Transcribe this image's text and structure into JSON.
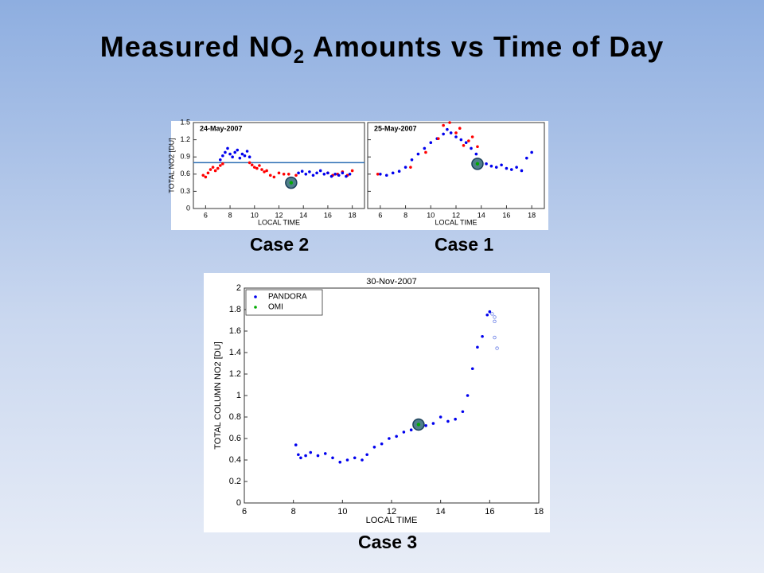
{
  "slide_title": {
    "main": "Measured NO",
    "sub": "2",
    "rest": " Amounts vs Time of Day"
  },
  "captions": [
    "Case 2",
    "Case 1",
    "Case 3"
  ],
  "chart_data": [
    {
      "type": "scatter",
      "title": "24-May-2007",
      "x_label": "LOCAL TIME",
      "y_label": "TOTAL NO2 [DU]",
      "xlim": [
        5,
        19
      ],
      "xticks": [
        6,
        8,
        10,
        12,
        14,
        16,
        18
      ],
      "ylim": [
        0,
        1.5
      ],
      "yticks": [
        0,
        0.3,
        0.6,
        0.9,
        1.2,
        1.5
      ],
      "reference_line": 0.8,
      "reference_color": "#2e6fb5",
      "series": [
        {
          "color": "#ff0000",
          "x": [
            5.8,
            6.0,
            6.2,
            6.4,
            6.6,
            6.8,
            7.0,
            7.2,
            7.4,
            9.6,
            9.8,
            10.0,
            10.2,
            10.4,
            10.6,
            10.8,
            11.0,
            11.3,
            11.6,
            12.0,
            12.4,
            12.8,
            13.4,
            16.0,
            16.4,
            16.8,
            17.2,
            17.6,
            18.0
          ],
          "values": [
            0.58,
            0.55,
            0.62,
            0.68,
            0.72,
            0.66,
            0.7,
            0.75,
            0.78,
            0.8,
            0.76,
            0.72,
            0.7,
            0.75,
            0.68,
            0.64,
            0.66,
            0.58,
            0.55,
            0.62,
            0.6,
            0.6,
            0.58,
            0.62,
            0.58,
            0.6,
            0.64,
            0.58,
            0.66
          ]
        },
        {
          "color": "#0000ee",
          "x": [
            7.2,
            7.4,
            7.6,
            7.8,
            8.0,
            8.2,
            8.4,
            8.6,
            8.8,
            9.0,
            9.2,
            9.4,
            9.6,
            13.6,
            13.9,
            14.2,
            14.5,
            14.8,
            15.1,
            15.4,
            15.7,
            16.0,
            16.3,
            16.6,
            16.9,
            17.2,
            17.5,
            17.8
          ],
          "values": [
            0.85,
            0.92,
            0.98,
            1.05,
            0.95,
            0.9,
            0.98,
            1.02,
            0.88,
            0.95,
            0.92,
            1.0,
            0.9,
            0.62,
            0.65,
            0.6,
            0.64,
            0.58,
            0.62,
            0.66,
            0.6,
            0.62,
            0.56,
            0.6,
            0.58,
            0.62,
            0.56,
            0.6
          ]
        },
        {
          "color": "#00aa00",
          "marker": "highlight",
          "x": [
            13.0
          ],
          "values": [
            0.45
          ]
        }
      ]
    },
    {
      "type": "scatter",
      "title": "25-May-2007",
      "x_label": "LOCAL TIME",
      "xlim": [
        5,
        19
      ],
      "xticks": [
        6,
        8,
        10,
        12,
        14,
        16,
        18
      ],
      "ylim": [
        0,
        1.5
      ],
      "yticks": [
        0,
        0.3,
        0.6,
        0.9,
        1.2,
        1.5
      ],
      "series": [
        {
          "color": "#0000ee",
          "x": [
            6.0,
            6.5,
            7.0,
            7.5,
            8.0,
            8.5,
            9.0,
            9.5,
            10.0,
            10.5,
            11.0,
            11.3,
            11.6,
            12.0,
            12.4,
            12.8,
            13.2,
            13.6,
            14.0,
            14.4,
            14.8,
            15.2,
            15.6,
            16.0,
            16.4,
            16.8,
            17.2,
            17.6,
            18.0
          ],
          "values": [
            0.6,
            0.58,
            0.62,
            0.65,
            0.72,
            0.85,
            0.95,
            1.05,
            1.15,
            1.22,
            1.3,
            1.38,
            1.32,
            1.25,
            1.2,
            1.15,
            1.05,
            0.95,
            0.82,
            0.78,
            0.74,
            0.72,
            0.76,
            0.7,
            0.68,
            0.72,
            0.66,
            0.88,
            0.98
          ]
        },
        {
          "color": "#ff0000",
          "x": [
            5.8,
            8.4,
            9.6,
            10.6,
            11.0,
            11.5,
            12.0,
            12.3,
            12.6,
            13.0,
            13.3,
            13.7
          ],
          "values": [
            0.6,
            0.72,
            0.98,
            1.22,
            1.45,
            1.5,
            1.32,
            1.4,
            1.1,
            1.18,
            1.25,
            1.08
          ]
        },
        {
          "color": "#00aa00",
          "marker": "highlight",
          "x": [
            13.7
          ],
          "values": [
            0.78
          ]
        }
      ]
    },
    {
      "type": "scatter",
      "title": "30-Nov-2007",
      "x_label": "LOCAL TIME",
      "y_label": "TOTAL COLUMN NO2 [DU]",
      "xlim": [
        6,
        18
      ],
      "xticks": [
        6,
        8,
        10,
        12,
        14,
        16,
        18
      ],
      "ylim": [
        0,
        2
      ],
      "yticks": [
        0,
        0.2,
        0.4,
        0.6,
        0.8,
        1,
        1.2,
        1.4,
        1.6,
        1.8,
        2
      ],
      "legend": "upper left",
      "series": [
        {
          "name": "PANDORA",
          "color": "#0000ee",
          "x": [
            8.1,
            8.2,
            8.3,
            8.5,
            8.7,
            9.0,
            9.3,
            9.6,
            9.9,
            10.2,
            10.5,
            10.8,
            11.0,
            11.3,
            11.6,
            11.9,
            12.2,
            12.5,
            12.8,
            13.1,
            13.4,
            13.7,
            14.0,
            14.3,
            14.6,
            14.9,
            15.1,
            15.3,
            15.5,
            15.7,
            15.9,
            16.0
          ],
          "values": [
            0.54,
            0.45,
            0.42,
            0.44,
            0.47,
            0.44,
            0.46,
            0.42,
            0.38,
            0.4,
            0.42,
            0.4,
            0.45,
            0.52,
            0.55,
            0.6,
            0.62,
            0.66,
            0.68,
            0.7,
            0.72,
            0.74,
            0.8,
            0.76,
            0.78,
            0.85,
            1.0,
            1.25,
            1.45,
            1.55,
            1.75,
            1.78
          ]
        },
        {
          "name": "OMI",
          "color": "#00aa00",
          "marker": "highlight",
          "x": [
            13.1
          ],
          "values": [
            0.73
          ]
        },
        {
          "color": "#6a7fe6",
          "marker": "open",
          "x": [
            16.1,
            16.2,
            16.2,
            16.2,
            16.3
          ],
          "values": [
            1.76,
            1.73,
            1.69,
            1.54,
            1.44
          ]
        }
      ]
    }
  ]
}
